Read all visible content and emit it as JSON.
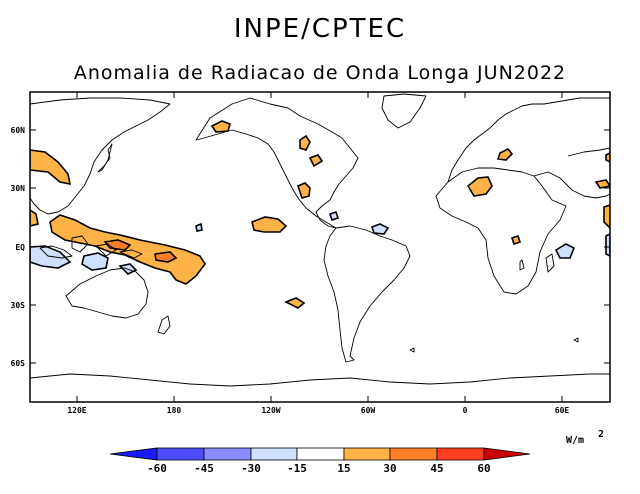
{
  "header": {
    "org": "INPE/CPTEC",
    "title": "Anomalia de Radiacao de Onda Longa JUN2022"
  },
  "map": {
    "lat_labels": [
      "60N",
      "30N",
      "EQ",
      "30S",
      "60S"
    ],
    "lon_labels": [
      "120E",
      "180",
      "120W",
      "60W",
      "0",
      "60E"
    ]
  },
  "legend": {
    "unit": "W/m",
    "unit_exp": "2",
    "tick_labels": [
      "-60",
      "-45",
      "-30",
      "-15",
      "15",
      "30",
      "45",
      "60"
    ],
    "colors": [
      "#1a1aff",
      "#4d4dff",
      "#8c8cff",
      "#cfe0ff",
      "#ffffff",
      "#ffb347",
      "#ff7f27",
      "#ff3f1f",
      "#cc0000"
    ]
  },
  "anomaly_colors": {
    "positive_weak": "#ffb347",
    "positive_moderate": "#ff7f27",
    "negative_weak": "#cfe0ff"
  }
}
